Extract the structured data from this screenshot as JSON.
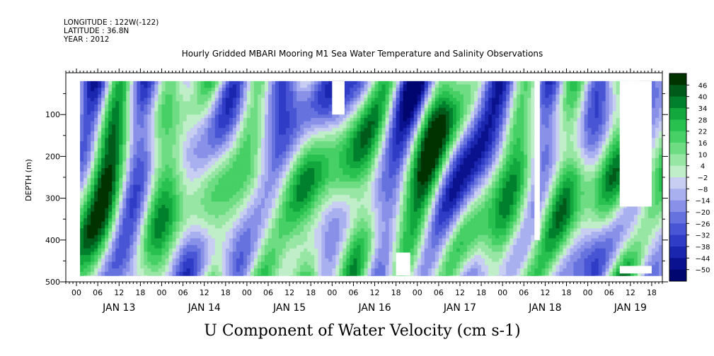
{
  "header": {
    "longitude": "LONGITUDE : 122W(-122)",
    "latitude": "LATITUDE : 36.8N",
    "year": "YEAR : 2012"
  },
  "chart_data": {
    "type": "heatmap",
    "title": "Hourly Gridded MBARI Mooring M1 Sea Water Temperature and Salinity Observations",
    "xlabel": "U Component of Water Velocity (cm s-1)",
    "ylabel": "DEPTH (m)",
    "x_unit": "hours since JAN 13 2012 00:00",
    "xlim": [
      -3,
      165
    ],
    "ylim": [
      500,
      0
    ],
    "y_ticks": [
      100,
      200,
      300,
      400,
      500
    ],
    "x_tick_labels": [
      "00",
      "06",
      "12",
      "18",
      "00",
      "06",
      "12",
      "18",
      "00",
      "06",
      "12",
      "18",
      "00",
      "06",
      "12",
      "18",
      "00",
      "06",
      "12",
      "18",
      "00",
      "06",
      "12",
      "18",
      "00",
      "06",
      "12",
      "18"
    ],
    "day_labels": [
      "JAN 13",
      "JAN 14",
      "JAN 15",
      "JAN 16",
      "JAN 17",
      "JAN 18",
      "JAN 19"
    ],
    "data_extent": {
      "hours": [
        1,
        165
      ],
      "depth_m": [
        20,
        485
      ]
    },
    "colorbar": {
      "levels": [
        46,
        40,
        34,
        28,
        22,
        16,
        10,
        4,
        -2,
        -8,
        -14,
        -20,
        -26,
        -32,
        -38,
        -44,
        -50
      ],
      "colors": [
        "#003300",
        "#005a1a",
        "#00802c",
        "#12a83e",
        "#28c04f",
        "#46d065",
        "#6edc82",
        "#98e6a4",
        "#c0eec8",
        "#c8cdf2",
        "#a8b0ef",
        "#8890e8",
        "#6672de",
        "#4855d4",
        "#2f3cc6",
        "#1a26ae",
        "#0a1290",
        "#000670"
      ]
    },
    "approx_mean_by_depth": [
      {
        "depth_m": 50,
        "value": -10
      },
      {
        "depth_m": 150,
        "value": 0
      },
      {
        "depth_m": 250,
        "value": 6
      },
      {
        "depth_m": 350,
        "value": 4
      },
      {
        "depth_m": 450,
        "value": 0
      }
    ],
    "missing_regions": [
      {
        "hours": [
          72,
          75.5
        ],
        "depth_m": [
          20,
          100
        ]
      },
      {
        "hours": [
          129,
          130.5
        ],
        "depth_m": [
          20,
          400
        ]
      },
      {
        "hours": [
          153,
          162
        ],
        "depth_m": [
          20,
          320
        ]
      },
      {
        "hours": [
          153,
          162
        ],
        "depth_m": [
          462,
          480
        ]
      },
      {
        "hours": [
          90,
          94
        ],
        "depth_m": [
          430,
          485
        ]
      }
    ]
  }
}
